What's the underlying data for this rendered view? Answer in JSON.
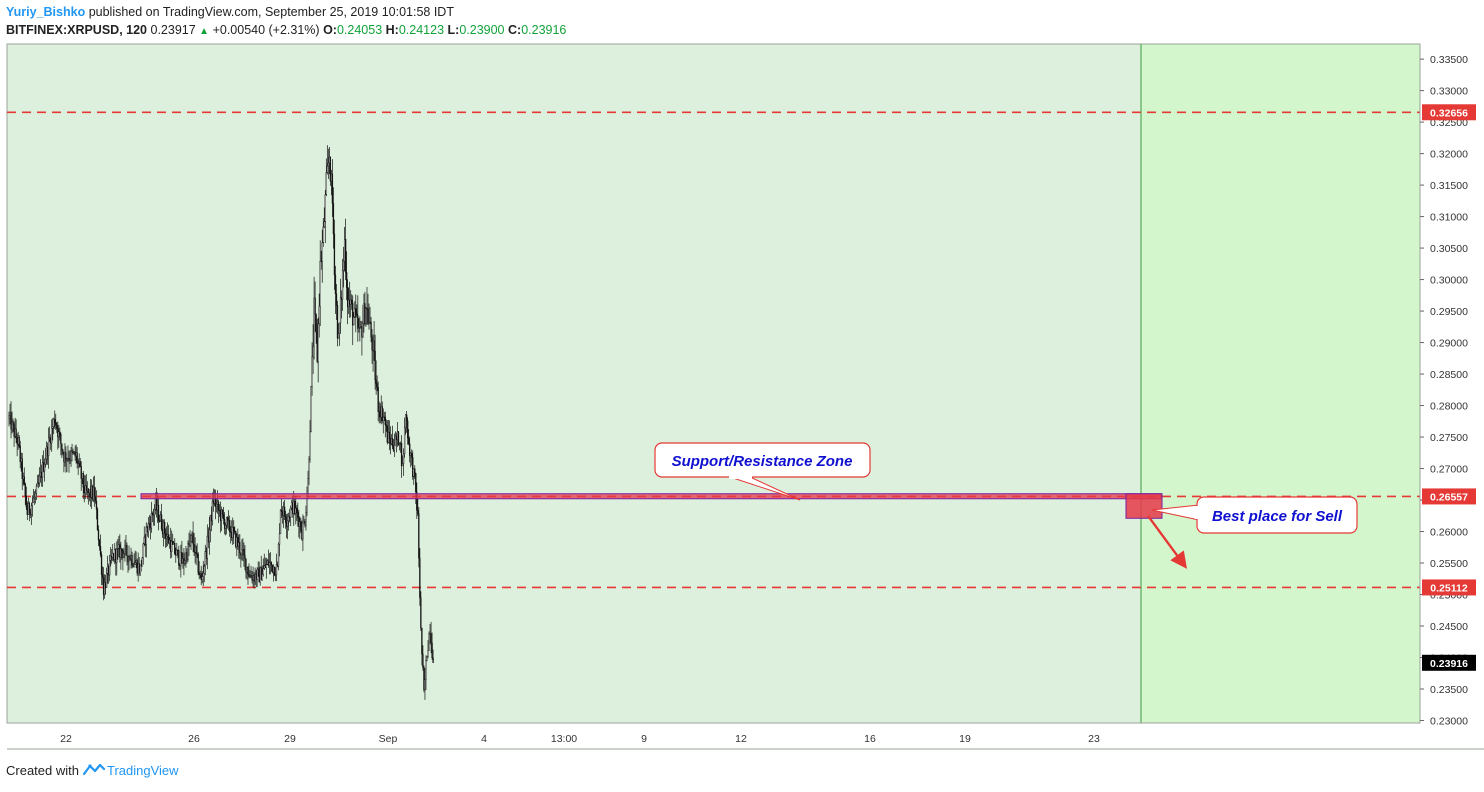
{
  "header": {
    "author": "Yuriy_Bishko",
    "published_text": "published on TradingView.com, September 25, 2019 10:01:58 IDT",
    "symbol": "BITFINEX:XRPUSD, 120",
    "last": "0.23917",
    "change": "+0.00540 (+2.31%)",
    "o_label": "O:",
    "o_value": "0.24053",
    "h_label": "H:",
    "h_value": "0.24123",
    "l_label": "L:",
    "l_value": "0.23900",
    "c_label": "C:",
    "c_value": "0.23916"
  },
  "footer": {
    "created_with": "Created with",
    "brand": "TradingView"
  },
  "colors": {
    "chart_bg": "#ddf0dd",
    "future_bg": "#d4f6cc",
    "dashed_line": "#e53935",
    "zone_fill": "#e53949",
    "zone_border": "#7b1fa2",
    "callout_text": "#1010d0",
    "price_tag": "#e53935",
    "last_tag": "#000000"
  },
  "annotations": {
    "zone_label": "Support/Resistance Zone",
    "sell_label": "Best place for Sell"
  },
  "chart_data": {
    "type": "candlestick",
    "x_ticks": [
      "22",
      "26",
      "29",
      "Sep",
      "4",
      "13:00",
      "9",
      "12",
      "16",
      "19",
      "23"
    ],
    "y_ticks": [
      "0.33500",
      "0.33000",
      "0.32500",
      "0.32000",
      "0.31500",
      "0.31000",
      "0.30500",
      "0.30000",
      "0.29500",
      "0.29000",
      "0.28500",
      "0.28000",
      "0.27500",
      "0.27000",
      "0.26500",
      "0.26000",
      "0.25500",
      "0.25000",
      "0.24500",
      "0.24000",
      "0.23500",
      "0.23000"
    ],
    "ylim": [
      0.2296,
      0.3374
    ],
    "horizontal_levels": [
      {
        "value": 0.32656,
        "label": "0.32656"
      },
      {
        "value": 0.26557,
        "label": "0.26557"
      },
      {
        "value": 0.25112,
        "label": "0.25112"
      }
    ],
    "last_price": {
      "value": 0.23916,
      "label": "0.23916"
    },
    "path": [
      [
        0,
        0.278
      ],
      [
        3,
        0.274
      ],
      [
        6,
        0.263
      ],
      [
        9,
        0.266
      ],
      [
        12,
        0.272
      ],
      [
        15,
        0.278
      ],
      [
        18,
        0.272
      ],
      [
        22,
        0.272
      ],
      [
        25,
        0.266
      ],
      [
        28,
        0.266
      ],
      [
        31,
        0.251
      ],
      [
        34,
        0.256
      ],
      [
        37,
        0.257
      ],
      [
        40,
        0.256
      ],
      [
        43,
        0.254
      ],
      [
        45,
        0.26
      ],
      [
        48,
        0.264
      ],
      [
        51,
        0.26
      ],
      [
        54,
        0.257
      ],
      [
        57,
        0.255
      ],
      [
        60,
        0.259
      ],
      [
        63,
        0.252
      ],
      [
        65,
        0.258
      ],
      [
        67,
        0.265
      ],
      [
        70,
        0.262
      ],
      [
        73,
        0.26
      ],
      [
        76,
        0.257
      ],
      [
        79,
        0.253
      ],
      [
        82,
        0.253
      ],
      [
        85,
        0.255
      ],
      [
        88,
        0.254
      ],
      [
        89,
        0.264
      ],
      [
        91,
        0.262
      ],
      [
        93,
        0.264
      ],
      [
        95,
        0.262
      ],
      [
        96,
        0.26
      ],
      [
        97,
        0.262
      ],
      [
        98,
        0.268
      ],
      [
        100,
        0.295
      ],
      [
        101,
        0.288
      ],
      [
        102,
        0.302
      ],
      [
        103,
        0.307
      ],
      [
        104,
        0.315
      ],
      [
        105,
        0.32
      ],
      [
        106,
        0.312
      ],
      [
        107,
        0.298
      ],
      [
        108,
        0.29
      ],
      [
        110,
        0.306
      ],
      [
        111,
        0.297
      ],
      [
        113,
        0.294
      ],
      [
        115,
        0.291
      ],
      [
        117,
        0.296
      ],
      [
        119,
        0.29
      ],
      [
        121,
        0.28
      ],
      [
        123,
        0.278
      ],
      [
        124,
        0.275
      ],
      [
        126,
        0.274
      ],
      [
        128,
        0.275
      ],
      [
        129,
        0.27
      ],
      [
        130,
        0.279
      ],
      [
        131,
        0.274
      ],
      [
        132,
        0.271
      ],
      [
        133,
        0.268
      ],
      [
        134,
        0.262
      ],
      [
        135,
        0.244
      ],
      [
        136,
        0.234
      ],
      [
        137,
        0.241
      ],
      [
        138,
        0.245
      ],
      [
        139,
        0.2392
      ]
    ]
  }
}
